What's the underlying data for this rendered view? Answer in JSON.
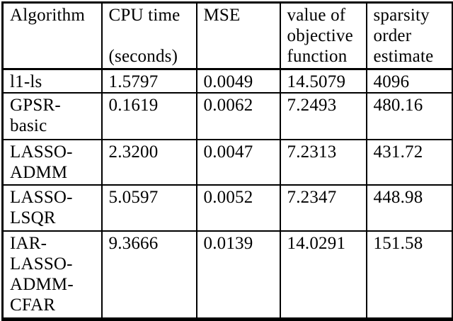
{
  "table": {
    "columns": [
      {
        "label": "Algorithm"
      },
      {
        "label": "CPU time\n\n(seconds)"
      },
      {
        "label": "MSE"
      },
      {
        "label": "value of\nobjective\nfunction"
      },
      {
        "label": "sparsity\norder\nestimate"
      }
    ],
    "rows": [
      {
        "cells": [
          "l1-ls",
          "1.5797",
          "0.0049",
          "14.5079",
          "4096"
        ]
      },
      {
        "cells": [
          "GPSR-\nbasic",
          "0.1619",
          "0.0062",
          "7.2493",
          "480.16"
        ]
      },
      {
        "cells": [
          "LASSO-\nADMM",
          "2.3200",
          "0.0047",
          "7.2313",
          "431.72"
        ]
      },
      {
        "cells": [
          "LASSO-\nLSQR",
          "5.0597",
          "0.0052",
          "7.2347",
          "448.98"
        ]
      },
      {
        "cells": [
          "IAR-\nLASSO-\nADMM-\nCFAR",
          "9.3666",
          "0.0139",
          "14.0291",
          "151.58"
        ]
      }
    ]
  },
  "colors": {
    "background": "#ffffff",
    "text": "#000000",
    "border": "#000000"
  }
}
